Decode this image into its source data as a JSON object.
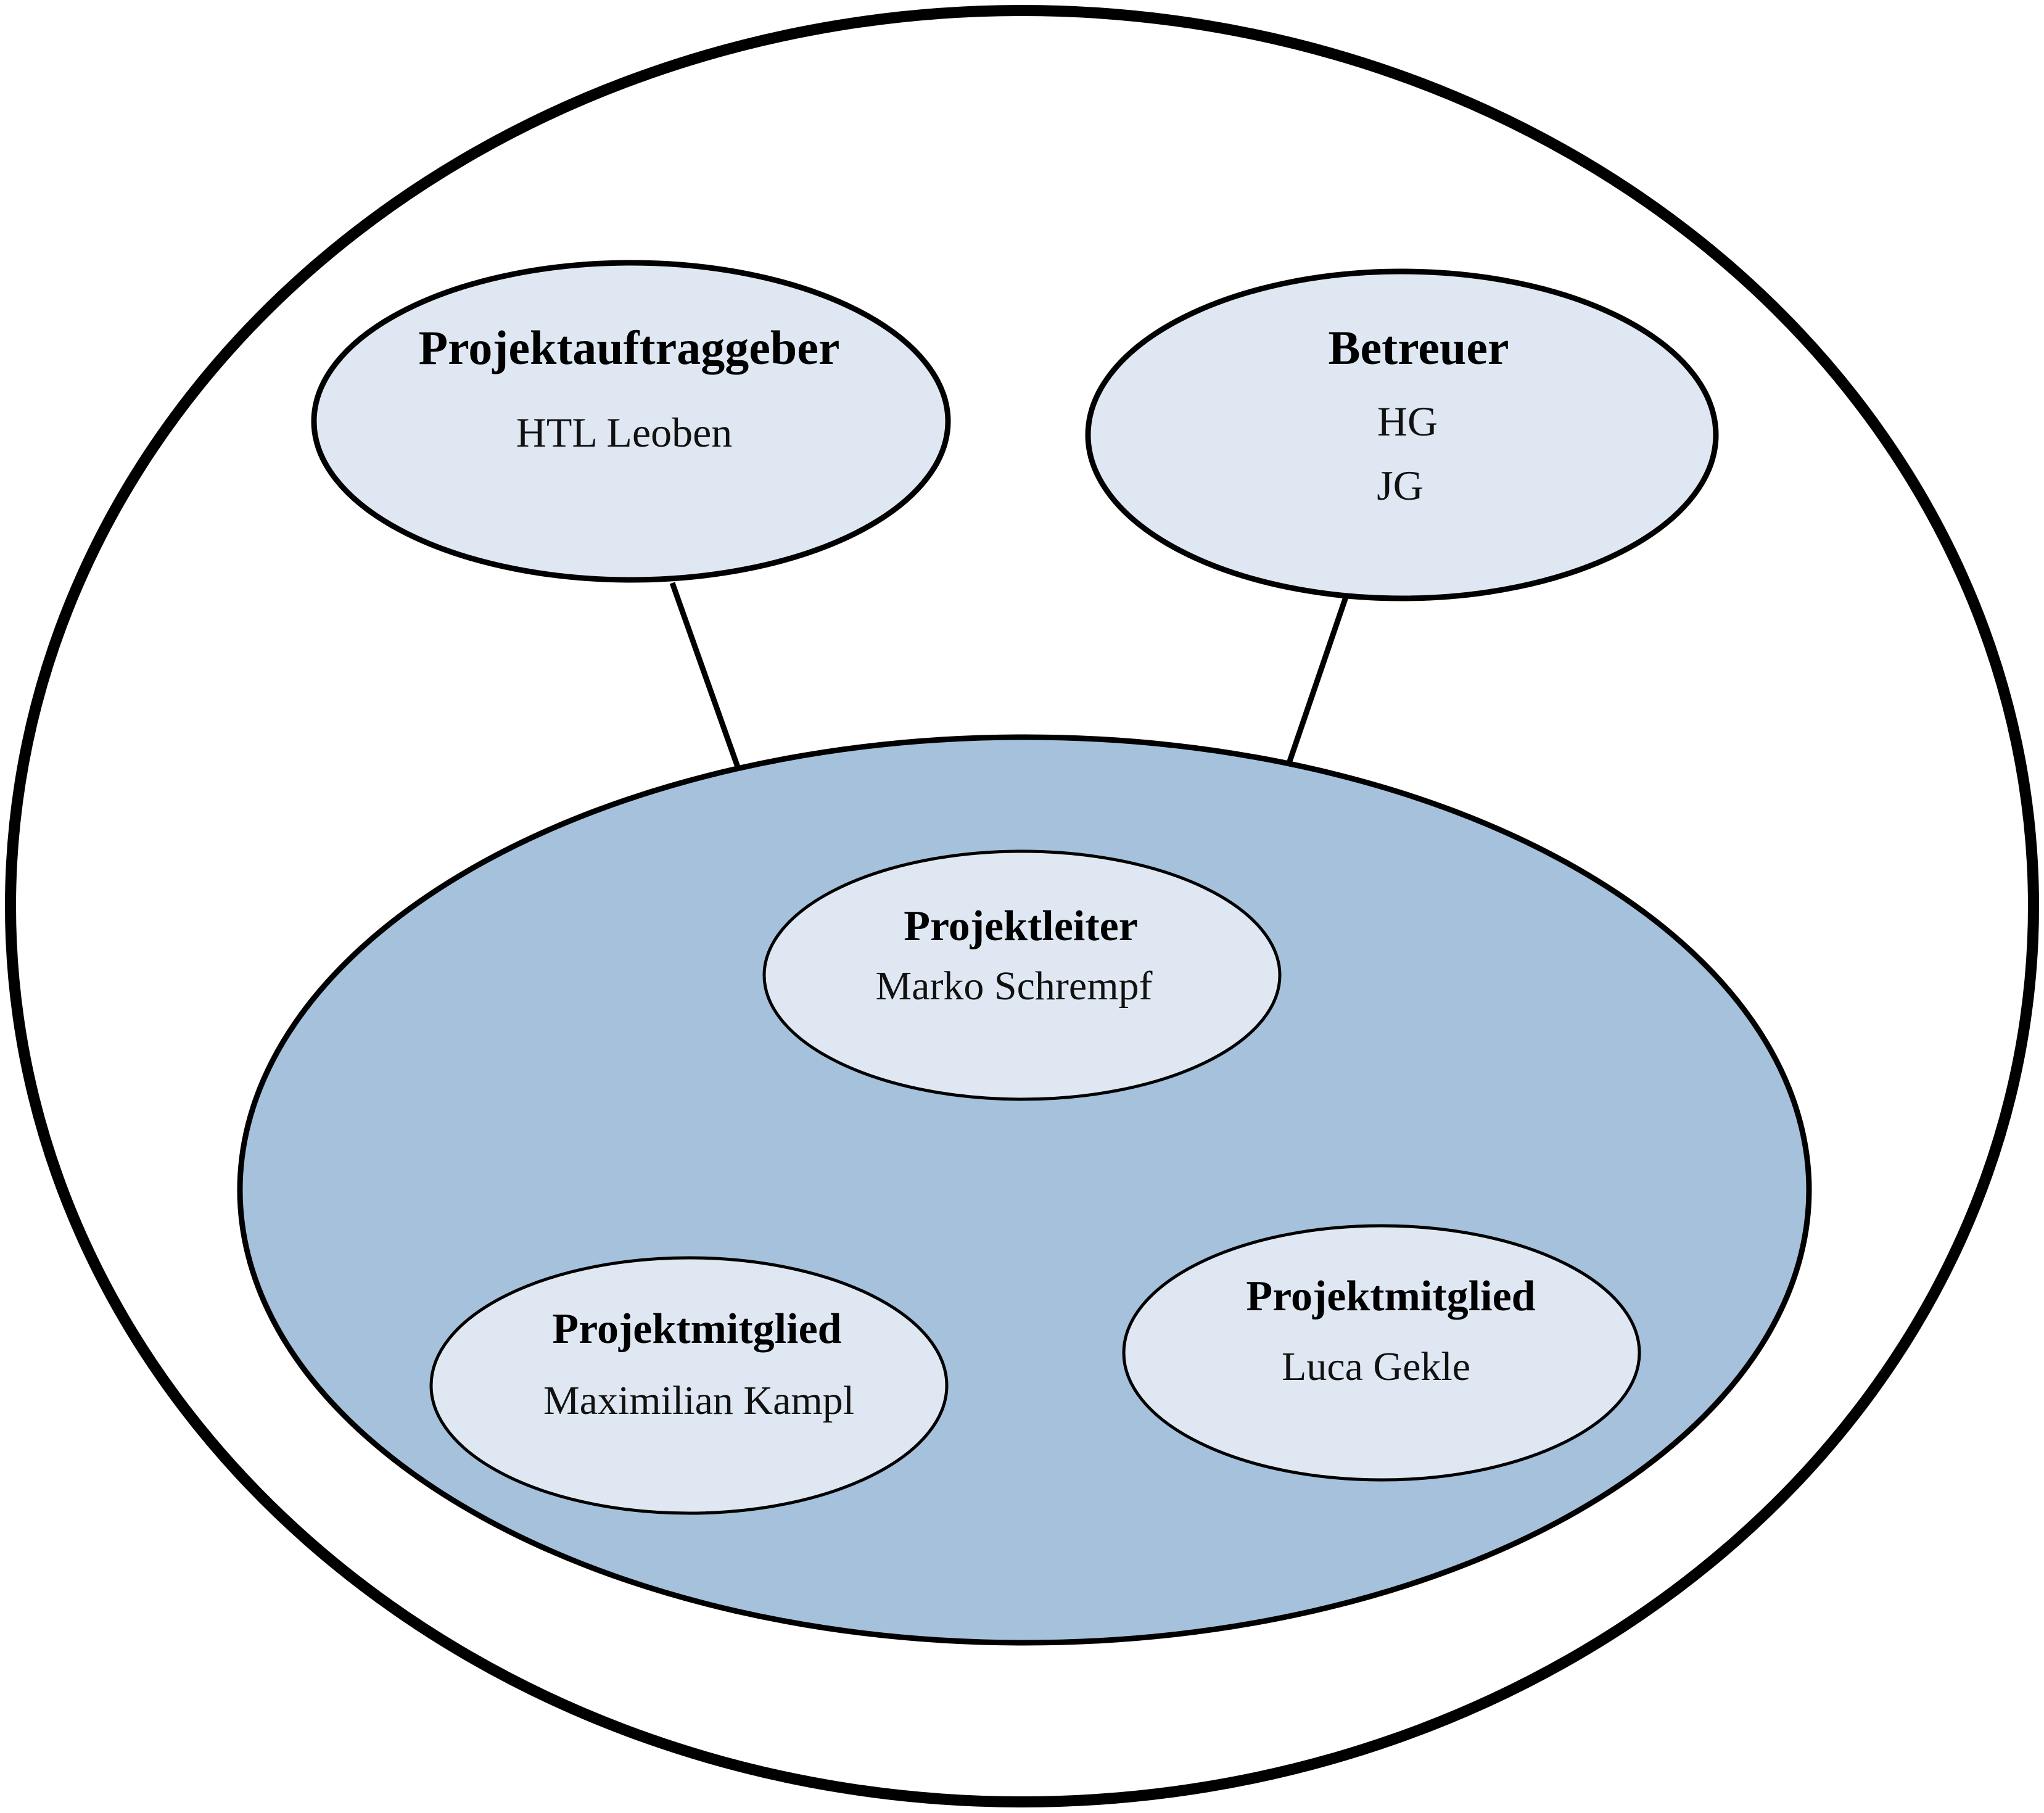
{
  "colors": {
    "outer_fill": "#ffffff",
    "team_fill": "#a6c1db",
    "node_fill": "#deE8f2",
    "stroke": "#000000"
  },
  "nodes": {
    "client": {
      "title": "Projektauftraggeber",
      "lines": [
        "HTL Leoben"
      ]
    },
    "supervisor": {
      "title": "Betreuer",
      "lines": [
        "HG",
        "JG"
      ]
    },
    "lead": {
      "title": "Projektleiter",
      "lines": [
        "Marko Schrempf"
      ]
    },
    "member1": {
      "title": "Projektmitglied",
      "lines": [
        "Maximilian Kampl"
      ]
    },
    "member2": {
      "title": "Projektmitglied",
      "lines": [
        "Luca Gekle"
      ]
    }
  }
}
